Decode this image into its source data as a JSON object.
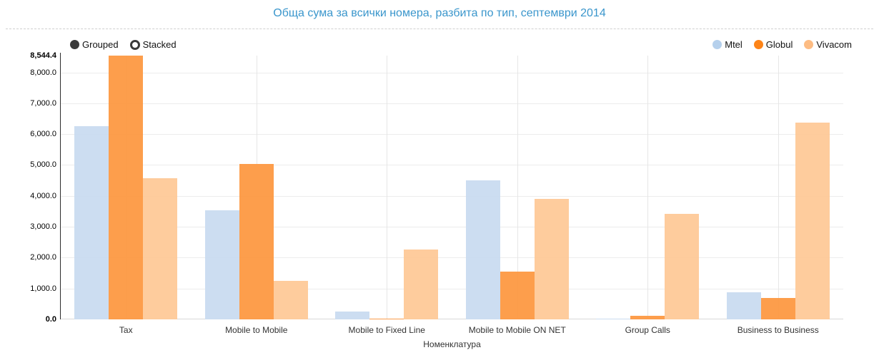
{
  "title": "Обща сума за всички номера, разбита по тип, септември 2014",
  "controls": {
    "grouped_label": "Grouped",
    "stacked_label": "Stacked",
    "selected": "Grouped",
    "radio_color": "#3a3a3a"
  },
  "chart_data": {
    "type": "bar",
    "title": "Обща сума за всички номера, разбита по тип, септември 2014",
    "xlabel": "Номенклатура",
    "ylabel": "",
    "ylim": [
      0,
      8544.4
    ],
    "grid": true,
    "legend_position": "top-right",
    "categories": [
      "Tax",
      "Mobile to Mobile",
      "Mobile to Fixed Line",
      "Mobile to Mobile ON NET",
      "Group Calls",
      "Business to Business"
    ],
    "series": [
      {
        "name": "Mtel",
        "legend_color": "#b5d0ec",
        "bar_color": "#c9dbf0",
        "values": [
          6260,
          3540,
          250,
          4500,
          30,
          870
        ]
      },
      {
        "name": "Globul",
        "legend_color": "#fd8418",
        "bar_color": "#fd9942",
        "values": [
          8544.4,
          5030,
          25,
          1540,
          115,
          690
        ]
      },
      {
        "name": "Vivacom",
        "legend_color": "#fdbc83",
        "bar_color": "#fec998",
        "values": [
          4580,
          1250,
          2260,
          3910,
          3420,
          6370
        ]
      }
    ],
    "yticks": [
      0,
      1000,
      2000,
      3000,
      4000,
      5000,
      6000,
      7000,
      8000,
      8544.4
    ],
    "ytick_labels": [
      "0.0",
      "1,000.0",
      "2,000.0",
      "3,000.0",
      "4,000.0",
      "5,000.0",
      "6,000.0",
      "7,000.0",
      "8,000.0",
      "8,544.4"
    ]
  }
}
